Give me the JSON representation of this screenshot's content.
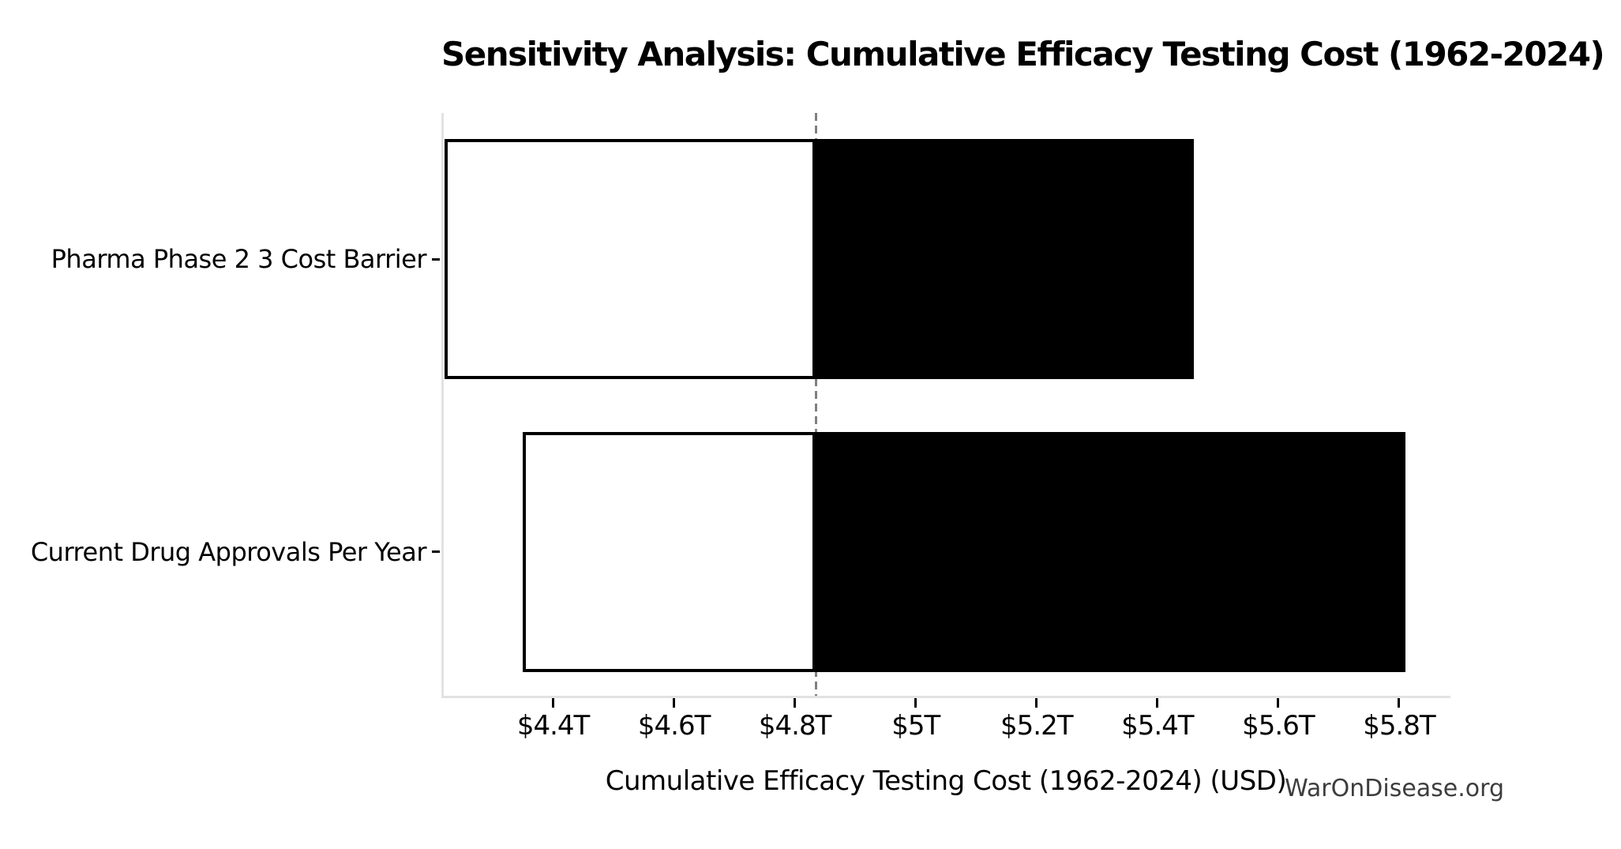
{
  "watermark": "WarOnDisease.org",
  "chart_data": {
    "type": "bar",
    "subtype": "tornado-sensitivity",
    "orientation": "horizontal",
    "title": "Sensitivity Analysis: Cumulative Efficacy Testing Cost (1962-2024)",
    "xlabel": "Cumulative Efficacy Testing Cost (1962-2024) (USD)",
    "ylabel": "",
    "units": "trillions USD",
    "categories": [
      "Pharma Phase 2 3 Cost Barrier",
      "Current Drug Approvals Per Year"
    ],
    "base_value_T": 4.835,
    "bars": [
      {
        "label": "Pharma Phase 2 3 Cost Barrier",
        "low_T": 4.22,
        "high_T": 5.46
      },
      {
        "label": "Current Drug Approvals Per Year",
        "low_T": 4.35,
        "high_T": 5.81
      }
    ],
    "xlim_T": [
      4.215,
      5.885
    ],
    "x_ticks_T": [
      4.4,
      4.6,
      4.8,
      5.0,
      5.2,
      5.4,
      5.6,
      5.8
    ],
    "x_tick_labels": [
      "$4.4T",
      "$4.6T",
      "$4.8T",
      "$5T",
      "$5.2T",
      "$5.4T",
      "$5.6T",
      "$5.8T"
    ],
    "grid": false,
    "legend": false,
    "colors": {
      "low_segment_fill": "#ffffff",
      "high_segment_fill": "#000000",
      "bar_edge": "#000000",
      "base_line": "#808080",
      "spine": "#e2e2e2",
      "tick": "#000000",
      "text": "#000000",
      "watermark": "#3d3d3d"
    }
  }
}
